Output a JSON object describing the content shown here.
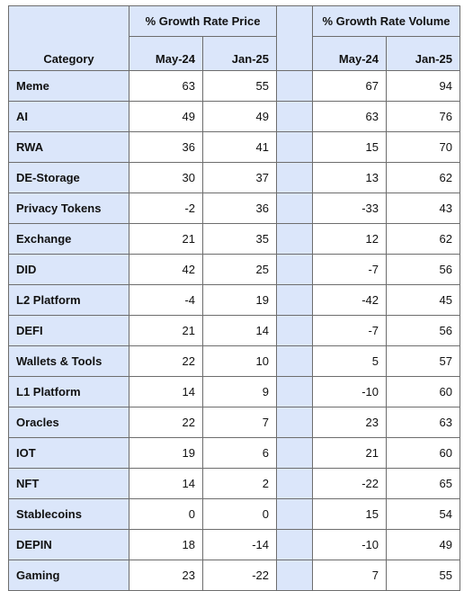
{
  "chart_data": {
    "type": "table",
    "header": {
      "category": "Category",
      "price_group": "% Growth Rate Price",
      "volume_group": "% Growth Rate Volume",
      "periods": [
        "May-24",
        "Jan-25"
      ]
    },
    "rows": [
      {
        "category": "Meme",
        "price": [
          63,
          55
        ],
        "volume": [
          67,
          94
        ]
      },
      {
        "category": "AI",
        "price": [
          49,
          49
        ],
        "volume": [
          63,
          76
        ]
      },
      {
        "category": "RWA",
        "price": [
          36,
          41
        ],
        "volume": [
          15,
          70
        ]
      },
      {
        "category": "DE-Storage",
        "price": [
          30,
          37
        ],
        "volume": [
          13,
          62
        ]
      },
      {
        "category": "Privacy Tokens",
        "price": [
          -2,
          36
        ],
        "volume": [
          -33,
          43
        ]
      },
      {
        "category": "Exchange",
        "price": [
          21,
          35
        ],
        "volume": [
          12,
          62
        ]
      },
      {
        "category": "DID",
        "price": [
          42,
          25
        ],
        "volume": [
          -7,
          56
        ]
      },
      {
        "category": "L2 Platform",
        "price": [
          -4,
          19
        ],
        "volume": [
          -42,
          45
        ]
      },
      {
        "category": "DEFI",
        "price": [
          21,
          14
        ],
        "volume": [
          -7,
          56
        ]
      },
      {
        "category": "Wallets & Tools",
        "price": [
          22,
          10
        ],
        "volume": [
          5,
          57
        ]
      },
      {
        "category": "L1 Platform",
        "price": [
          14,
          9
        ],
        "volume": [
          -10,
          60
        ]
      },
      {
        "category": "Oracles",
        "price": [
          22,
          7
        ],
        "volume": [
          23,
          63
        ]
      },
      {
        "category": "IOT",
        "price": [
          19,
          6
        ],
        "volume": [
          21,
          60
        ]
      },
      {
        "category": "NFT",
        "price": [
          14,
          2
        ],
        "volume": [
          -22,
          65
        ]
      },
      {
        "category": "Stablecoins",
        "price": [
          0,
          0
        ],
        "volume": [
          15,
          54
        ]
      },
      {
        "category": "DEPIN",
        "price": [
          18,
          -14
        ],
        "volume": [
          -10,
          49
        ]
      },
      {
        "category": "Gaming",
        "price": [
          23,
          -22
        ],
        "volume": [
          7,
          55
        ]
      }
    ]
  }
}
